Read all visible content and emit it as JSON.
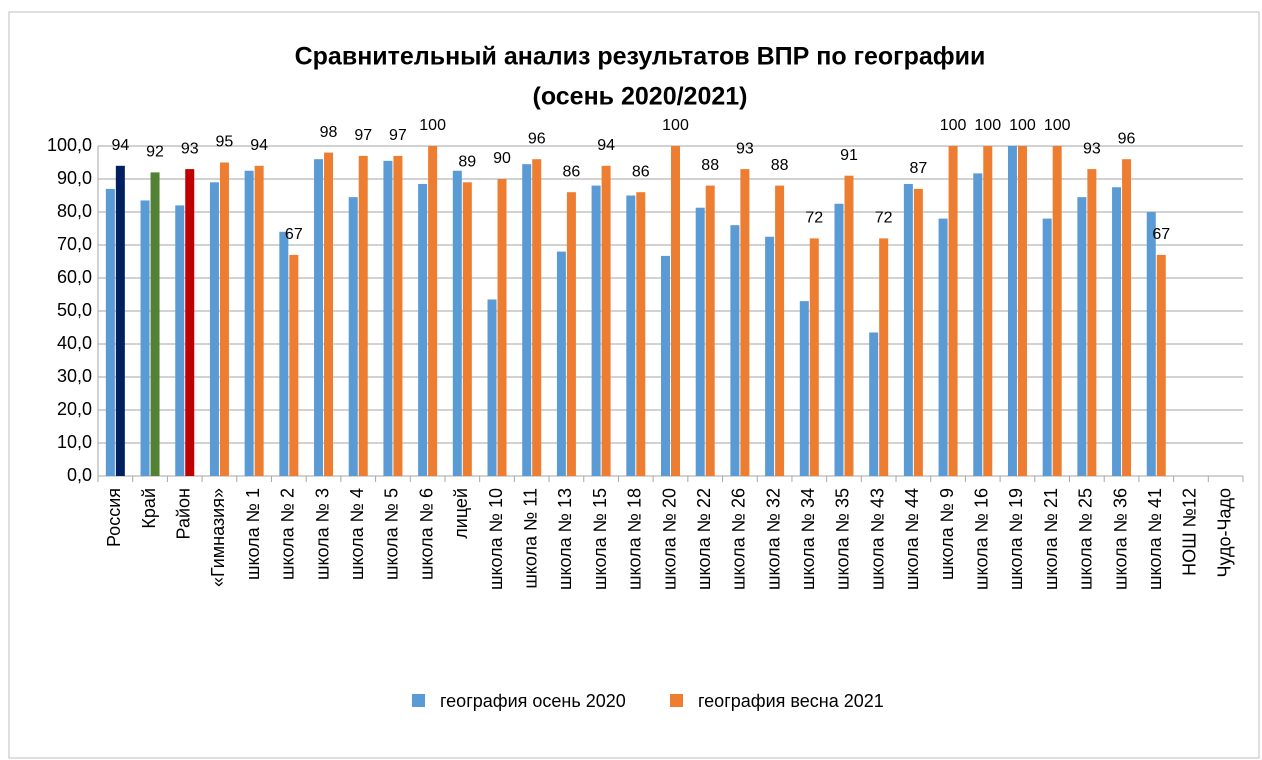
{
  "chart_data": {
    "type": "bar",
    "title_lines": [
      "Сравнительный анализ результатов ВПР по географии",
      "(осень 2020/2021)"
    ],
    "categories": [
      "Россия",
      "Край",
      "Район",
      "«Гимназия»",
      "школа № 1",
      "школа № 2",
      "школа № 3",
      "школа № 4",
      "школа № 5",
      "школа № 6",
      "лицей",
      "школа № 10",
      "школа № 11",
      "школа № 13",
      "школа № 15",
      "школа № 18",
      "школа № 20",
      "школа № 22",
      "школа № 26",
      "школа № 32",
      "школа № 34",
      "школа № 35",
      "школа № 43",
      "школа № 44",
      "школа  № 9",
      "школа № 16",
      "школа № 19",
      "школа № 21",
      "школа № 25",
      "школа № 36",
      "школа № 41",
      "НОШ №12",
      "Чудо-Чадо"
    ],
    "series": [
      {
        "name": "география осень 2020",
        "color": "#5b9bd5",
        "show_labels": false,
        "values": [
          87,
          83.5,
          82,
          89,
          92.5,
          74,
          96,
          84.5,
          95.5,
          88.5,
          92.5,
          53.5,
          94.5,
          68,
          88,
          85,
          66.7,
          81.3,
          76,
          72.5,
          53,
          82.5,
          43.5,
          88.5,
          78,
          91.7,
          100,
          78,
          84.5,
          87.5,
          80,
          null,
          null
        ]
      },
      {
        "name": "география весна 2021",
        "color": "#ed7d31",
        "show_labels": true,
        "point_colors": [
          "#002060",
          "#548235",
          "#c00000",
          "#ed7d31",
          "#ed7d31",
          "#ed7d31",
          "#ed7d31",
          "#ed7d31",
          "#ed7d31",
          "#ed7d31",
          "#ed7d31",
          "#ed7d31",
          "#ed7d31",
          "#ed7d31",
          "#ed7d31",
          "#ed7d31",
          "#ed7d31",
          "#ed7d31",
          "#ed7d31",
          "#ed7d31",
          "#ed7d31",
          "#ed7d31",
          "#ed7d31",
          "#ed7d31",
          "#ed7d31",
          "#ed7d31",
          "#ed7d31",
          "#ed7d31",
          "#ed7d31",
          "#ed7d31",
          "#ed7d31",
          "#ed7d31",
          "#ed7d31"
        ],
        "values": [
          94,
          92,
          93,
          95,
          94,
          67,
          98,
          97,
          97,
          100,
          89,
          90,
          96,
          86,
          94,
          86,
          100,
          88,
          93,
          88,
          72,
          91,
          72,
          87,
          100,
          100,
          100,
          100,
          93,
          96,
          67,
          null,
          null
        ]
      }
    ],
    "ylim": [
      0,
      100
    ],
    "yticks": [
      {
        "value": 0,
        "label": "0,0"
      },
      {
        "value": 10,
        "label": "10,0"
      },
      {
        "value": 20,
        "label": "20,0"
      },
      {
        "value": 30,
        "label": "30,0"
      },
      {
        "value": 40,
        "label": "40,0"
      },
      {
        "value": 50,
        "label": "50,0"
      },
      {
        "value": 60,
        "label": "60,0"
      },
      {
        "value": 70,
        "label": "70,0"
      },
      {
        "value": 80,
        "label": "80,0"
      },
      {
        "value": 90,
        "label": "90,0"
      },
      {
        "value": 100,
        "label": "100,0"
      }
    ],
    "grid": true,
    "legend": "bottom"
  }
}
